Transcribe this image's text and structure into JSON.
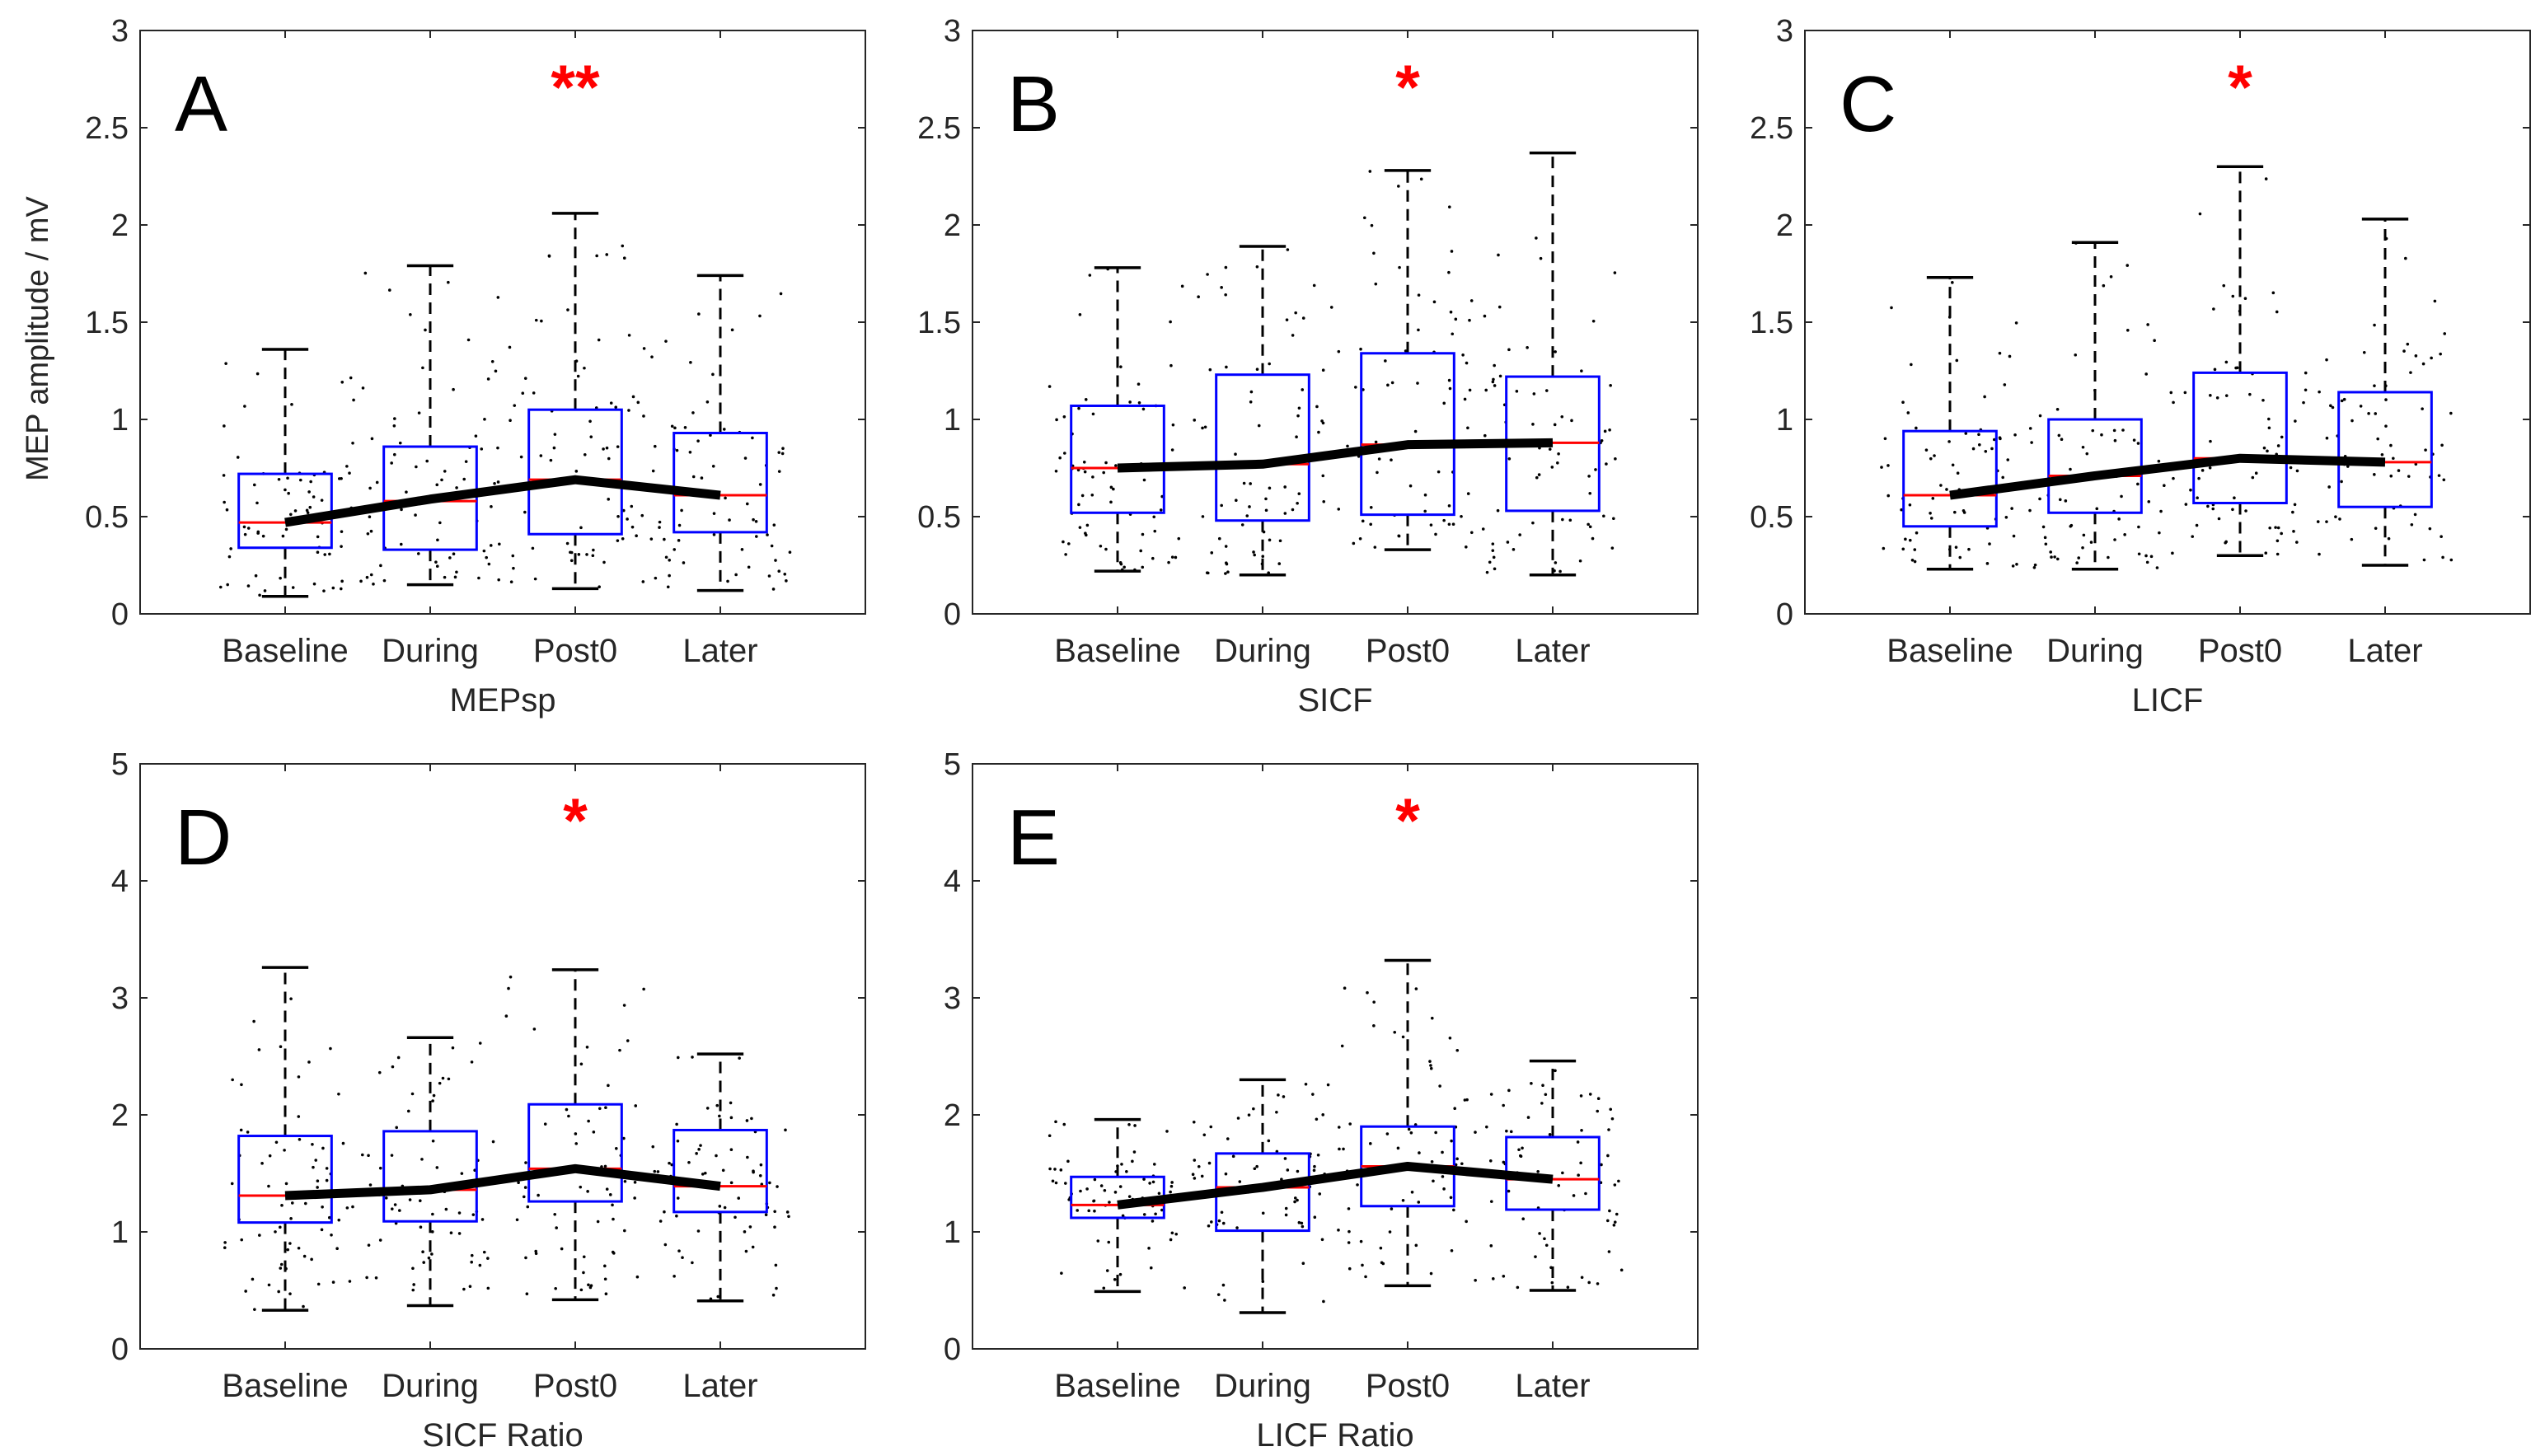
{
  "figure": {
    "colors": {
      "box": "#0000ff",
      "median": "#ff0000",
      "whisker": "#000000",
      "mean_line": "#000000",
      "points": "#000000",
      "significance": "#ff0000",
      "axes": "#262626"
    }
  },
  "chart_data": [
    {
      "type": "box",
      "panel": "A",
      "xlabel": "MEPsp",
      "ylabel": "MEP amplitude / mV",
      "ylim": [
        0,
        3
      ],
      "yticks": [
        "0",
        "0.5",
        "1",
        "1.5",
        "2",
        "2.5",
        "3"
      ],
      "categories": [
        "Baseline",
        "During",
        "Post0",
        "Later"
      ],
      "significance": {
        "category": "Post0",
        "label": "**"
      },
      "boxes": [
        {
          "q1": 0.34,
          "median": 0.47,
          "q3": 0.72,
          "whisker_low": 0.09,
          "whisker_high": 1.36
        },
        {
          "q1": 0.33,
          "median": 0.58,
          "q3": 0.86,
          "whisker_low": 0.15,
          "whisker_high": 1.79
        },
        {
          "q1": 0.41,
          "median": 0.69,
          "q3": 1.05,
          "whisker_low": 0.13,
          "whisker_high": 2.06
        },
        {
          "q1": 0.42,
          "median": 0.61,
          "q3": 0.93,
          "whisker_low": 0.12,
          "whisker_high": 1.74
        }
      ],
      "mean_line": [
        0.47,
        0.59,
        0.69,
        0.61
      ]
    },
    {
      "type": "box",
      "panel": "B",
      "xlabel": "SICF",
      "ylabel": "",
      "ylim": [
        0,
        3
      ],
      "yticks": [
        "0",
        "0.5",
        "1",
        "1.5",
        "2",
        "2.5",
        "3"
      ],
      "categories": [
        "Baseline",
        "During",
        "Post0",
        "Later"
      ],
      "significance": {
        "category": "Post0",
        "label": "*"
      },
      "boxes": [
        {
          "q1": 0.52,
          "median": 0.75,
          "q3": 1.07,
          "whisker_low": 0.22,
          "whisker_high": 1.78
        },
        {
          "q1": 0.48,
          "median": 0.77,
          "q3": 1.23,
          "whisker_low": 0.2,
          "whisker_high": 1.89
        },
        {
          "q1": 0.51,
          "median": 0.87,
          "q3": 1.34,
          "whisker_low": 0.33,
          "whisker_high": 2.28
        },
        {
          "q1": 0.53,
          "median": 0.88,
          "q3": 1.22,
          "whisker_low": 0.2,
          "whisker_high": 2.37
        }
      ],
      "mean_line": [
        0.75,
        0.77,
        0.87,
        0.88
      ]
    },
    {
      "type": "box",
      "panel": "C",
      "xlabel": "LICF",
      "ylabel": "",
      "ylim": [
        0,
        3
      ],
      "yticks": [
        "0",
        "0.5",
        "1",
        "1.5",
        "2",
        "2.5",
        "3"
      ],
      "categories": [
        "Baseline",
        "During",
        "Post0",
        "Later"
      ],
      "significance": {
        "category": "Post0",
        "label": "*"
      },
      "boxes": [
        {
          "q1": 0.45,
          "median": 0.61,
          "q3": 0.94,
          "whisker_low": 0.23,
          "whisker_high": 1.73
        },
        {
          "q1": 0.52,
          "median": 0.71,
          "q3": 1.0,
          "whisker_low": 0.23,
          "whisker_high": 1.91
        },
        {
          "q1": 0.57,
          "median": 0.8,
          "q3": 1.24,
          "whisker_low": 0.3,
          "whisker_high": 2.3
        },
        {
          "q1": 0.55,
          "median": 0.78,
          "q3": 1.14,
          "whisker_low": 0.25,
          "whisker_high": 2.03
        }
      ],
      "mean_line": [
        0.61,
        0.71,
        0.8,
        0.78
      ]
    },
    {
      "type": "box",
      "panel": "D",
      "xlabel": "SICF Ratio",
      "ylabel": "",
      "ylim": [
        0,
        5
      ],
      "yticks": [
        "0",
        "1",
        "2",
        "3",
        "4",
        "5"
      ],
      "categories": [
        "Baseline",
        "During",
        "Post0",
        "Later"
      ],
      "significance": {
        "category": "Post0",
        "label": "*"
      },
      "boxes": [
        {
          "q1": 1.08,
          "median": 1.31,
          "q3": 1.82,
          "whisker_low": 0.33,
          "whisker_high": 3.26
        },
        {
          "q1": 1.09,
          "median": 1.36,
          "q3": 1.86,
          "whisker_low": 0.37,
          "whisker_high": 2.66
        },
        {
          "q1": 1.26,
          "median": 1.54,
          "q3": 2.09,
          "whisker_low": 0.42,
          "whisker_high": 3.24
        },
        {
          "q1": 1.17,
          "median": 1.39,
          "q3": 1.87,
          "whisker_low": 0.41,
          "whisker_high": 2.52
        }
      ],
      "mean_line": [
        1.31,
        1.36,
        1.54,
        1.39
      ]
    },
    {
      "type": "box",
      "panel": "E",
      "xlabel": "LICF Ratio",
      "ylabel": "",
      "ylim": [
        0,
        5
      ],
      "yticks": [
        "0",
        "1",
        "2",
        "3",
        "4",
        "5"
      ],
      "categories": [
        "Baseline",
        "During",
        "Post0",
        "Later"
      ],
      "significance": {
        "category": "Post0",
        "label": "*"
      },
      "boxes": [
        {
          "q1": 1.12,
          "median": 1.23,
          "q3": 1.47,
          "whisker_low": 0.49,
          "whisker_high": 1.96
        },
        {
          "q1": 1.01,
          "median": 1.38,
          "q3": 1.67,
          "whisker_low": 0.31,
          "whisker_high": 2.3
        },
        {
          "q1": 1.22,
          "median": 1.56,
          "q3": 1.9,
          "whisker_low": 0.54,
          "whisker_high": 3.32
        },
        {
          "q1": 1.19,
          "median": 1.45,
          "q3": 1.81,
          "whisker_low": 0.5,
          "whisker_high": 2.46
        }
      ],
      "mean_line": [
        1.23,
        1.38,
        1.56,
        1.45
      ]
    }
  ]
}
